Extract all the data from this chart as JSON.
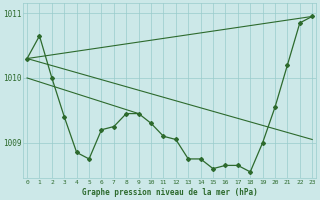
{
  "x": [
    0,
    1,
    2,
    3,
    4,
    5,
    6,
    7,
    8,
    9,
    10,
    11,
    12,
    13,
    14,
    15,
    16,
    17,
    18,
    19,
    20,
    21,
    22,
    23
  ],
  "y_main": [
    1010.3,
    1010.65,
    1010.0,
    1009.4,
    1008.85,
    1008.75,
    1009.2,
    1009.25,
    1009.45,
    1009.45,
    1009.3,
    1009.1,
    1009.05,
    1008.75,
    1008.75,
    1008.6,
    1008.65,
    1008.65,
    1008.55,
    1009.0,
    1009.55,
    1010.2,
    1010.85,
    1010.95
  ],
  "trend_lines": [
    {
      "x": [
        0,
        23
      ],
      "y": [
        1010.3,
        1010.95
      ]
    },
    {
      "x": [
        0,
        23
      ],
      "y": [
        1010.3,
        1009.05
      ]
    },
    {
      "x": [
        0,
        9
      ],
      "y": [
        1010.0,
        1009.45
      ]
    }
  ],
  "ylim": [
    1008.45,
    1011.15
  ],
  "yticks": [
    1009,
    1010,
    1011
  ],
  "xticks": [
    0,
    1,
    2,
    3,
    4,
    5,
    6,
    7,
    8,
    9,
    10,
    11,
    12,
    13,
    14,
    15,
    16,
    17,
    18,
    19,
    20,
    21,
    22,
    23
  ],
  "xlabel": "Graphe pression niveau de la mer (hPa)",
  "line_color": "#2d6a2d",
  "bg_color": "#cce8e8",
  "grid_color": "#99cccc"
}
